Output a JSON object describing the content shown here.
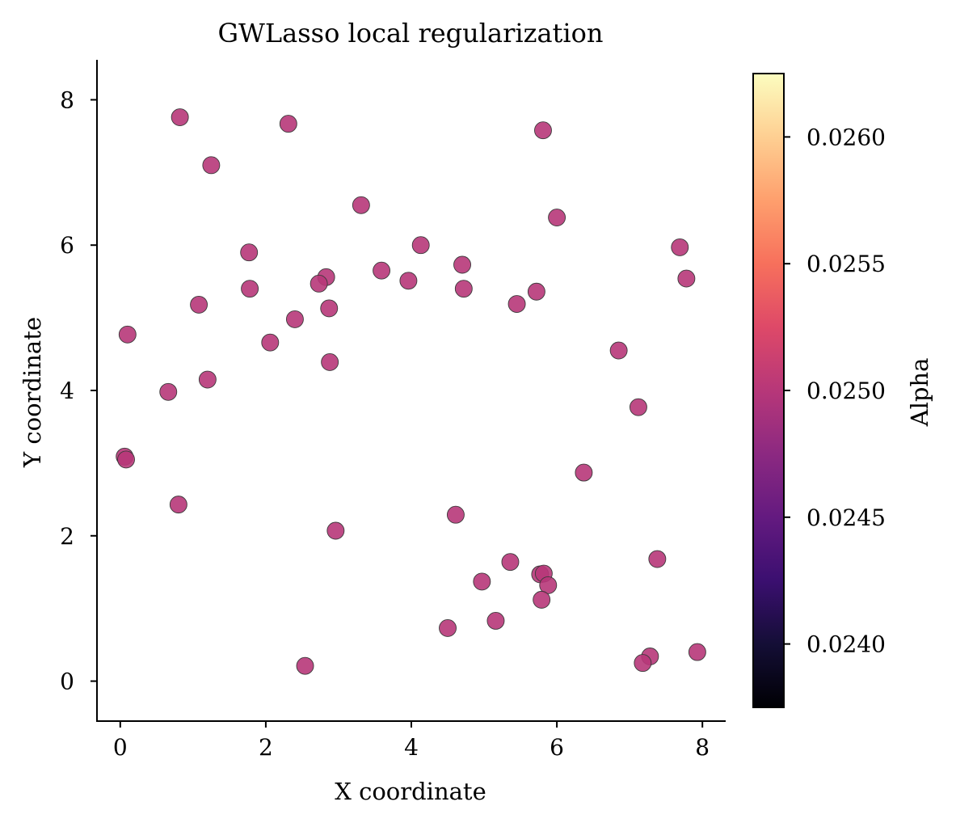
{
  "chart_data": {
    "type": "scatter",
    "title": "GWLasso local regularization",
    "xlabel": "X coordinate",
    "ylabel": "Y coordinate",
    "xlim": [
      -0.32,
      8.32
    ],
    "ylim": [
      -0.55,
      8.55
    ],
    "x_ticks": [
      0,
      2,
      4,
      6,
      8
    ],
    "y_ticks": [
      0,
      2,
      4,
      6,
      8
    ],
    "grid": false,
    "point_color": "#b73779",
    "points": [
      {
        "x": 0.82,
        "y": 7.76
      },
      {
        "x": 2.31,
        "y": 7.67
      },
      {
        "x": 1.25,
        "y": 7.1
      },
      {
        "x": 5.81,
        "y": 7.58
      },
      {
        "x": 3.31,
        "y": 6.55
      },
      {
        "x": 6.0,
        "y": 6.38
      },
      {
        "x": 1.77,
        "y": 5.9
      },
      {
        "x": 4.13,
        "y": 6.0
      },
      {
        "x": 7.69,
        "y": 5.97
      },
      {
        "x": 3.59,
        "y": 5.65
      },
      {
        "x": 4.7,
        "y": 5.73
      },
      {
        "x": 3.96,
        "y": 5.51
      },
      {
        "x": 2.83,
        "y": 5.56
      },
      {
        "x": 2.73,
        "y": 5.47
      },
      {
        "x": 7.78,
        "y": 5.54
      },
      {
        "x": 1.78,
        "y": 5.4
      },
      {
        "x": 4.72,
        "y": 5.4
      },
      {
        "x": 5.72,
        "y": 5.36
      },
      {
        "x": 1.08,
        "y": 5.18
      },
      {
        "x": 5.45,
        "y": 5.19
      },
      {
        "x": 2.87,
        "y": 5.13
      },
      {
        "x": 2.4,
        "y": 4.98
      },
      {
        "x": 0.1,
        "y": 4.77
      },
      {
        "x": 2.06,
        "y": 4.66
      },
      {
        "x": 6.85,
        "y": 4.55
      },
      {
        "x": 2.88,
        "y": 4.39
      },
      {
        "x": 1.2,
        "y": 4.15
      },
      {
        "x": 0.66,
        "y": 3.98
      },
      {
        "x": 7.12,
        "y": 3.77
      },
      {
        "x": 0.06,
        "y": 3.09
      },
      {
        "x": 0.08,
        "y": 3.05
      },
      {
        "x": 6.37,
        "y": 2.87
      },
      {
        "x": 0.8,
        "y": 2.43
      },
      {
        "x": 4.61,
        "y": 2.29
      },
      {
        "x": 2.96,
        "y": 2.07
      },
      {
        "x": 5.36,
        "y": 1.64
      },
      {
        "x": 7.38,
        "y": 1.68
      },
      {
        "x": 5.77,
        "y": 1.47
      },
      {
        "x": 5.82,
        "y": 1.48
      },
      {
        "x": 4.97,
        "y": 1.37
      },
      {
        "x": 5.88,
        "y": 1.32
      },
      {
        "x": 5.79,
        "y": 1.12
      },
      {
        "x": 5.16,
        "y": 0.83
      },
      {
        "x": 4.5,
        "y": 0.73
      },
      {
        "x": 7.93,
        "y": 0.4
      },
      {
        "x": 7.28,
        "y": 0.34
      },
      {
        "x": 7.18,
        "y": 0.25
      },
      {
        "x": 2.54,
        "y": 0.21
      }
    ],
    "colorbar": {
      "label": "Alpha",
      "colormap": "magma",
      "range": [
        0.02375,
        0.02625
      ],
      "ticks": [
        0.024,
        0.0245,
        0.025,
        0.0255,
        0.026
      ],
      "tick_labels": [
        "0.0240",
        "0.0245",
        "0.0250",
        "0.0255",
        "0.0260"
      ]
    }
  }
}
